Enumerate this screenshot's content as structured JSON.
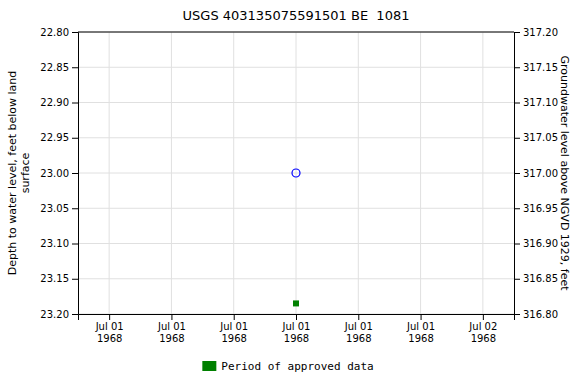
{
  "chart_data": {
    "type": "scatter",
    "title": "USGS 403135075591501 BE  1081",
    "y_label": "Depth to water level, feet below land\nsurface",
    "y2_label": "Groundwater level above NGVD 1929, feet",
    "categories": [
      "Jul 01\n1968",
      "Jul 01\n1968",
      "Jul 01\n1968",
      "Jul 01\n1968",
      "Jul 01\n1968",
      "Jul 01\n1968",
      "Jul 02\n1968"
    ],
    "series": [
      {
        "color": "blue",
        "marker": "circle",
        "values": [
          null,
          null,
          null,
          23.0,
          null,
          null,
          null
        ]
      },
      {
        "name": "Period of approved data",
        "color": "#008000",
        "marker": "square",
        "values": [
          null,
          null,
          null,
          23.185,
          null,
          null,
          null
        ]
      }
    ],
    "ylim": [
      23.2,
      22.8
    ],
    "yticks": [
      {
        "value": 22.8,
        "label": "22.80"
      },
      {
        "value": 22.85,
        "label": "22.85"
      },
      {
        "value": 22.9,
        "label": "22.90"
      },
      {
        "value": 22.95,
        "label": "22.95"
      },
      {
        "value": 23.0,
        "label": "23.00"
      },
      {
        "value": 23.05,
        "label": "23.05"
      },
      {
        "value": 23.1,
        "label": "23.10"
      },
      {
        "value": 23.15,
        "label": "23.15"
      },
      {
        "value": 23.2,
        "label": "23.20"
      }
    ],
    "y2lim": [
      316.8,
      317.2
    ],
    "y2ticks": [
      {
        "value": 317.2,
        "label": "317.20"
      },
      {
        "value": 317.15,
        "label": "317.15"
      },
      {
        "value": 317.1,
        "label": "317.10"
      },
      {
        "value": 317.05,
        "label": "317.05"
      },
      {
        "value": 317.0,
        "label": "317.00"
      },
      {
        "value": 316.95,
        "label": "316.95"
      },
      {
        "value": 316.9,
        "label": "316.90"
      },
      {
        "value": 316.85,
        "label": "316.85"
      },
      {
        "value": 316.8,
        "label": "316.80"
      }
    ],
    "grid": true,
    "legend": "bottom"
  }
}
